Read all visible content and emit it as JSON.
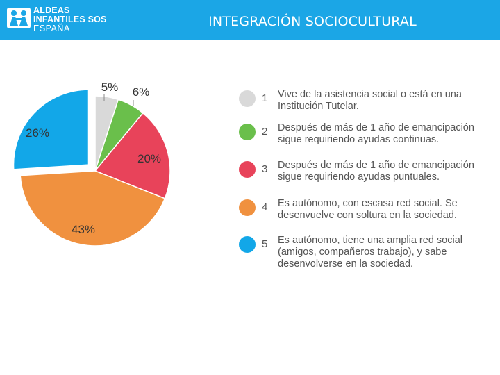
{
  "header": {
    "logo_line1": "ALDEAS",
    "logo_line2": "INFANTILES SOS",
    "logo_line3": "ESPAÑA",
    "title": "INTEGRACIÓN SOCIOCULTURAL",
    "background": "#1ba6e6"
  },
  "chart_data": {
    "type": "pie",
    "title": "INTEGRACIÓN SOCIOCULTURAL",
    "categories": [
      "1",
      "2",
      "3",
      "4",
      "5"
    ],
    "values": [
      5,
      6,
      20,
      43,
      26
    ],
    "value_labels": [
      "5%",
      "6%",
      "20%",
      "43%",
      "26%"
    ],
    "colors": [
      "#d9d9d9",
      "#6abf4b",
      "#e8435a",
      "#f0913f",
      "#12a7e8"
    ],
    "exploded_slices": [
      "5"
    ],
    "legend_placement": "right"
  },
  "legend": {
    "items": [
      {
        "number": "1",
        "text": "Vive de la asistencia social o está en una Institución Tutelar.",
        "color": "#d9d9d9"
      },
      {
        "number": "2",
        "text": "Después de más de 1 año de emancipación sigue requiriendo ayudas continuas.",
        "color": "#6abf4b"
      },
      {
        "number": "3",
        "text": "Después de más de 1 año de emancipación sigue requiriendo ayudas puntuales.",
        "color": "#e8435a"
      },
      {
        "number": "4",
        "text": "Es autónomo, con escasa red social. Se desenvuelve con soltura en la sociedad.",
        "color": "#f0913f"
      },
      {
        "number": "5",
        "text": "Es autónomo, tiene una amplia red social (amigos, compañeros trabajo), y sabe desenvolverse en la sociedad.",
        "color": "#12a7e8"
      }
    ]
  }
}
